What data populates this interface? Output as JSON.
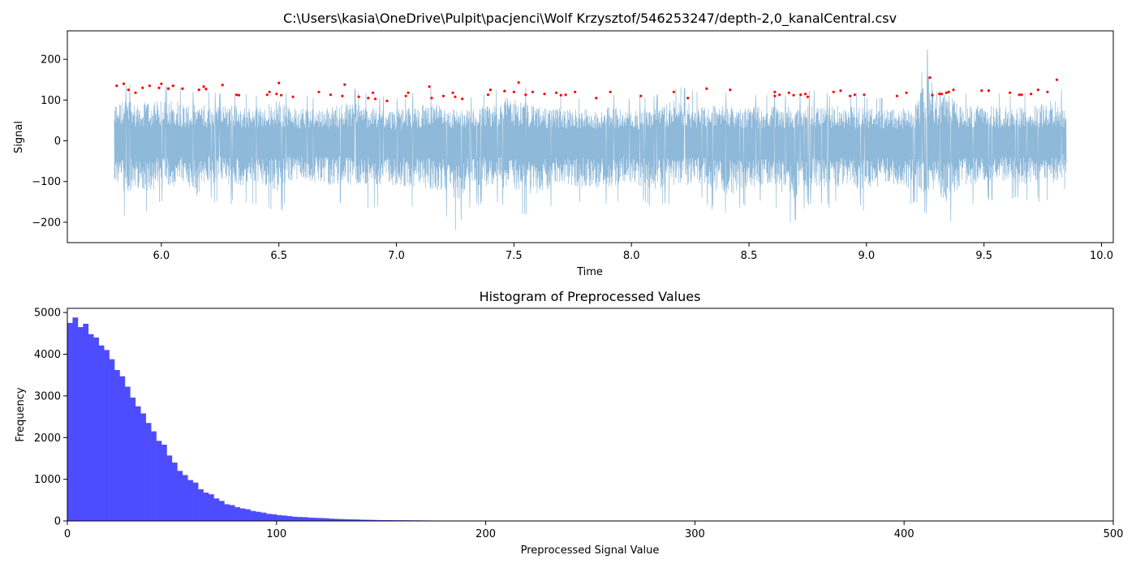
{
  "figure": {
    "background": "#ffffff"
  },
  "chart_data": [
    {
      "type": "line",
      "title": "C:\\Users\\kasia\\OneDrive\\Pulpit\\pacjenci\\Wolf Krzysztof/546253247/depth-2,0_kanalCentral.csv",
      "xlabel": "Time",
      "ylabel": "Signal",
      "xlim": [
        5.6,
        10.05
      ],
      "ylim": [
        -250,
        270
      ],
      "xticks": [
        6.0,
        6.5,
        7.0,
        7.5,
        8.0,
        8.5,
        9.0,
        9.5,
        10.0
      ],
      "xtick_labels": [
        "6.0",
        "6.5",
        "7.0",
        "7.5",
        "8.0",
        "8.5",
        "9.0",
        "9.5",
        "10.0"
      ],
      "yticks": [
        -200,
        -100,
        0,
        100,
        200
      ],
      "ytick_labels": [
        "−200",
        "−100",
        "0",
        "100",
        "200"
      ],
      "grid": false,
      "signal": {
        "color": "#8fb9d9",
        "t_start": 5.8,
        "t_end": 9.85,
        "envelope": [
          [
            5.8,
            135,
            -135
          ],
          [
            5.84,
            140,
            -195
          ],
          [
            5.87,
            150,
            -175
          ],
          [
            5.9,
            130,
            -165
          ],
          [
            5.95,
            140,
            -185
          ],
          [
            6.0,
            140,
            -150
          ],
          [
            6.05,
            155,
            -165
          ],
          [
            6.1,
            130,
            -140
          ],
          [
            6.15,
            130,
            -200
          ],
          [
            6.2,
            125,
            -150
          ],
          [
            6.3,
            130,
            -160
          ],
          [
            6.4,
            115,
            -155
          ],
          [
            6.5,
            145,
            -185
          ],
          [
            6.55,
            115,
            -140
          ],
          [
            6.6,
            120,
            -150
          ],
          [
            6.7,
            115,
            -155
          ],
          [
            6.8,
            140,
            -155
          ],
          [
            6.9,
            115,
            -170
          ],
          [
            7.0,
            110,
            -155
          ],
          [
            7.05,
            115,
            -165
          ],
          [
            7.15,
            135,
            -170
          ],
          [
            7.2,
            120,
            -175
          ],
          [
            7.25,
            115,
            -225
          ],
          [
            7.3,
            110,
            -170
          ],
          [
            7.4,
            125,
            -155
          ],
          [
            7.45,
            150,
            -165
          ],
          [
            7.5,
            150,
            -175
          ],
          [
            7.6,
            120,
            -190
          ],
          [
            7.7,
            115,
            -150
          ],
          [
            7.8,
            110,
            -165
          ],
          [
            7.9,
            120,
            -165
          ],
          [
            8.0,
            110,
            -150
          ],
          [
            8.1,
            115,
            -175
          ],
          [
            8.18,
            140,
            -160
          ],
          [
            8.3,
            125,
            -155
          ],
          [
            8.4,
            125,
            -195
          ],
          [
            8.5,
            120,
            -165
          ],
          [
            8.6,
            125,
            -150
          ],
          [
            8.67,
            120,
            -215
          ],
          [
            8.75,
            125,
            -165
          ],
          [
            8.85,
            120,
            -170
          ],
          [
            8.9,
            125,
            -155
          ],
          [
            9.0,
            115,
            -175
          ],
          [
            9.1,
            110,
            -145
          ],
          [
            9.15,
            115,
            -180
          ],
          [
            9.2,
            120,
            -155
          ],
          [
            9.27,
            245,
            -205
          ],
          [
            9.3,
            115,
            -195
          ],
          [
            9.34,
            175,
            -215
          ],
          [
            9.4,
            120,
            -160
          ],
          [
            9.5,
            125,
            -155
          ],
          [
            9.6,
            120,
            -150
          ],
          [
            9.7,
            120,
            -155
          ],
          [
            9.8,
            150,
            -150
          ],
          [
            9.85,
            115,
            -120
          ]
        ]
      },
      "peaks": {
        "color": "#ff0000",
        "t": [
          5.81,
          5.84,
          5.86,
          5.89,
          5.92,
          5.95,
          5.99,
          6.0,
          6.03,
          6.05,
          6.09,
          6.16,
          6.18,
          6.19,
          6.26,
          6.32,
          6.33,
          6.45,
          6.46,
          6.49,
          6.5,
          6.51,
          6.56,
          6.67,
          6.72,
          6.77,
          6.78,
          6.84,
          6.88,
          6.9,
          6.91,
          6.96,
          7.04,
          7.05,
          7.14,
          7.15,
          7.2,
          7.24,
          7.25,
          7.28,
          7.39,
          7.4,
          7.46,
          7.5,
          7.52,
          7.55,
          7.58,
          7.63,
          7.68,
          7.7,
          7.72,
          7.76,
          7.85,
          7.91,
          8.04,
          8.18,
          8.24,
          8.32,
          8.42,
          8.61,
          8.61,
          8.63,
          8.67,
          8.69,
          8.72,
          8.74,
          8.75,
          8.86,
          8.89,
          8.93,
          8.95,
          8.99,
          9.13,
          9.17,
          9.27,
          9.28,
          9.31,
          9.32,
          9.34,
          9.35,
          9.37,
          9.49,
          9.52,
          9.61,
          9.65,
          9.66,
          9.7,
          9.73,
          9.77,
          9.81
        ],
        "y": [
          135,
          140,
          125,
          118,
          130,
          135,
          130,
          140,
          128,
          135,
          128,
          125,
          133,
          127,
          137,
          113,
          112,
          113,
          120,
          115,
          142,
          112,
          108,
          120,
          113,
          110,
          138,
          108,
          105,
          118,
          103,
          98,
          110,
          118,
          133,
          105,
          110,
          118,
          108,
          103,
          113,
          125,
          122,
          120,
          143,
          113,
          120,
          115,
          118,
          112,
          113,
          120,
          105,
          120,
          110,
          120,
          105,
          128,
          125,
          120,
          110,
          113,
          118,
          112,
          113,
          115,
          108,
          120,
          123,
          110,
          113,
          113,
          110,
          118,
          155,
          112,
          115,
          115,
          118,
          120,
          125,
          123,
          123,
          118,
          113,
          113,
          115,
          125,
          120,
          150
        ]
      }
    },
    {
      "type": "bar",
      "title": "Histogram of Preprocessed Values",
      "xlabel": "Preprocessed Signal Value",
      "ylabel": "Frequency",
      "xlim": [
        0,
        500
      ],
      "ylim": [
        0,
        5100
      ],
      "xticks": [
        0,
        100,
        200,
        300,
        400,
        500
      ],
      "xtick_labels": [
        "0",
        "100",
        "200",
        "300",
        "400",
        "500"
      ],
      "yticks": [
        0,
        1000,
        2000,
        3000,
        4000,
        5000
      ],
      "ytick_labels": [
        "0",
        "1000",
        "2000",
        "3000",
        "4000",
        "5000"
      ],
      "grid": false,
      "color": "#4d4dff",
      "bin_width": 2.5,
      "bin_start": 0,
      "values": [
        4750,
        4880,
        4650,
        4730,
        4480,
        4400,
        4210,
        4100,
        3880,
        3620,
        3470,
        3220,
        2960,
        2750,
        2580,
        2350,
        2150,
        1920,
        1830,
        1570,
        1400,
        1200,
        1100,
        980,
        920,
        760,
        680,
        640,
        540,
        480,
        400,
        380,
        330,
        300,
        280,
        240,
        220,
        200,
        170,
        160,
        140,
        130,
        115,
        100,
        95,
        90,
        80,
        75,
        70,
        65,
        55,
        50,
        45,
        42,
        38,
        35,
        30,
        28,
        25,
        22,
        20,
        19,
        18,
        17,
        16,
        15,
        14,
        13,
        12,
        11,
        10,
        8,
        5,
        0,
        0,
        0,
        0,
        8,
        0,
        0,
        0,
        0,
        0,
        0,
        0,
        0,
        0,
        0,
        0,
        0,
        0,
        0,
        0,
        0,
        0,
        0,
        0,
        0,
        0,
        0,
        0,
        0,
        0,
        0,
        0,
        0,
        0,
        0,
        0,
        0,
        0,
        0,
        0,
        0,
        0,
        0,
        0,
        0,
        0,
        0,
        0,
        0,
        0,
        0,
        0,
        0,
        0,
        0,
        0,
        0,
        0,
        0,
        0,
        0,
        0,
        0,
        0,
        0,
        0,
        0,
        0,
        0,
        0,
        0,
        0,
        0,
        0,
        0,
        0,
        0,
        0,
        0,
        0,
        0,
        0,
        0,
        0,
        0,
        0,
        0,
        0,
        0,
        0,
        0,
        0,
        0,
        0,
        0,
        0,
        0,
        0,
        0,
        0,
        0,
        0,
        0,
        0,
        0,
        0,
        0,
        0,
        0,
        0,
        0,
        0,
        0,
        0,
        0,
        0,
        0,
        0,
        0,
        0,
        0,
        0,
        0
      ]
    }
  ]
}
